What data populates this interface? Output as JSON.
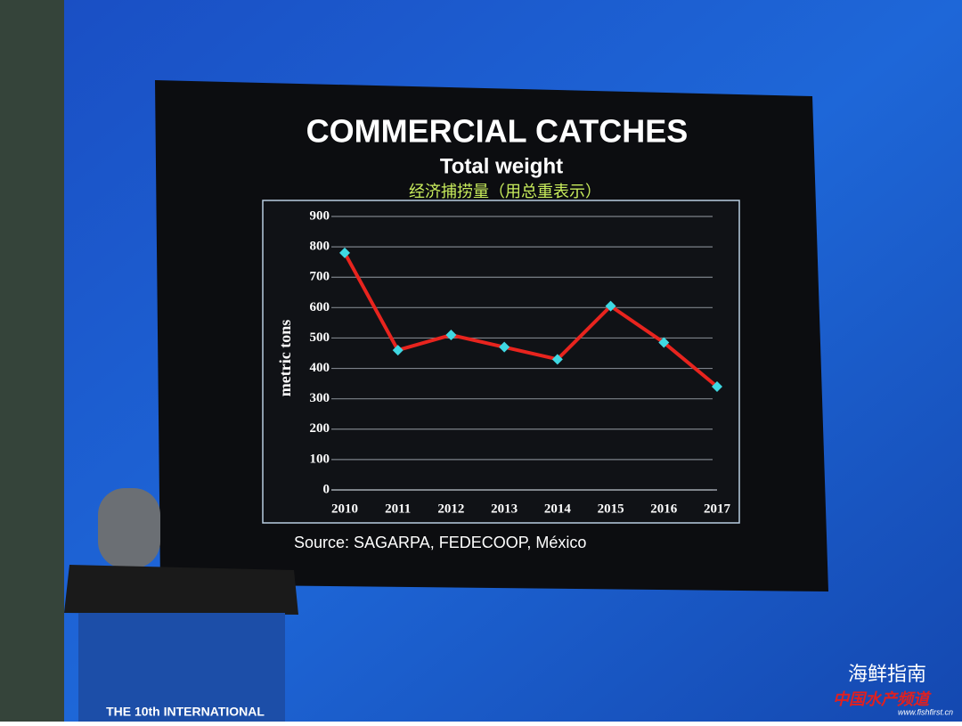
{
  "chart_data": {
    "type": "line",
    "title": "COMMERCIAL CATCHES",
    "subtitle": "Total weight",
    "subtitle_cn": "经济捕捞量（用总重表示）",
    "y_label": "metric tons",
    "source": "Source: SAGARPA, FEDECOOP, México",
    "categories": [
      "2010",
      "2011",
      "2012",
      "2013",
      "2014",
      "2015",
      "2016",
      "2017"
    ],
    "series": [
      {
        "name": "metric tons",
        "color": "#e8241e",
        "marker_color": "#3fd8e2",
        "values": [
          780,
          460,
          510,
          470,
          430,
          605,
          485,
          340
        ]
      }
    ],
    "ylim": [
      0,
      900
    ],
    "yticks": [
      0,
      100,
      200,
      300,
      400,
      500,
      600,
      700,
      800,
      900
    ],
    "grid": true
  },
  "podium": "THE 10th INTERNATIONAL",
  "watermark": {
    "name": "海鲜指南",
    "channel": "中国水产频道",
    "site": "www.fishfirst.cn"
  }
}
